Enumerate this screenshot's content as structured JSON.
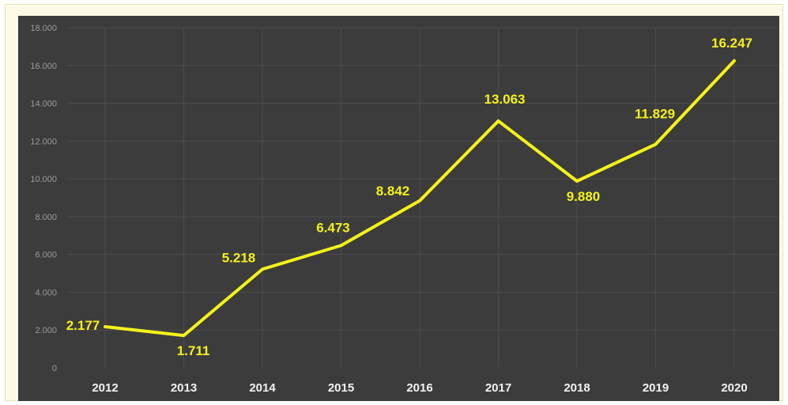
{
  "chart_data": {
    "type": "line",
    "x": [
      "2012",
      "2013",
      "2014",
      "2015",
      "2016",
      "2017",
      "2018",
      "2019",
      "2020"
    ],
    "series": [
      {
        "values": [
          2177,
          1711,
          5218,
          6473,
          8842,
          13063,
          9880,
          11829,
          16247
        ],
        "labels": [
          "2.177",
          "1.711",
          "5.218",
          "6.473",
          "8.842",
          "13.063",
          "9.880",
          "11.829",
          "16.247"
        ],
        "color": "#f5f21a"
      }
    ],
    "ylim": [
      0,
      18000
    ],
    "yticks": [
      0,
      2000,
      4000,
      6000,
      8000,
      10000,
      12000,
      14000,
      16000,
      18000
    ],
    "ytick_labels": [
      "0",
      "2.000",
      "4.000",
      "6.000",
      "8.000",
      "10.000",
      "12.000",
      "14.000",
      "16.000",
      "18.000"
    ],
    "title": "",
    "xlabel": "",
    "ylabel": "",
    "grid": true,
    "legend": "none",
    "colors": {
      "background": "#3c3c3c",
      "frame": "#fdfbe8",
      "line": "#f5f21a",
      "axis_text": "#f2f2f2",
      "tick_text": "#9a9a9a"
    }
  }
}
